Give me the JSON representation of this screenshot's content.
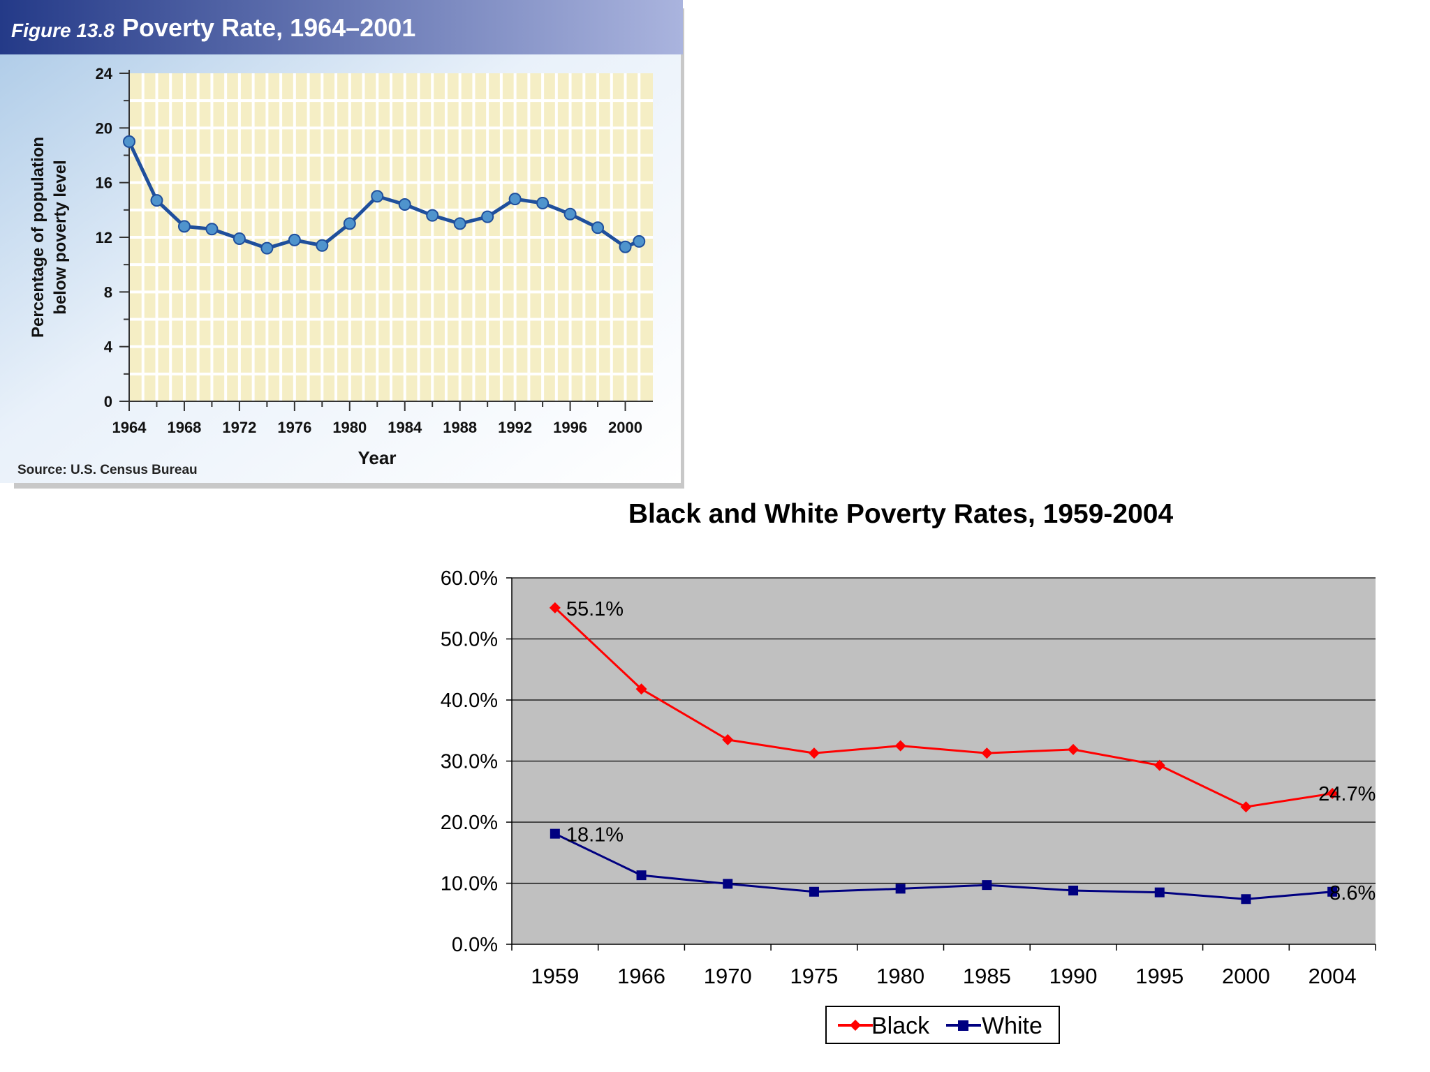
{
  "chart_data": [
    {
      "type": "line",
      "figure_label": "Figure 13.8",
      "title": "Poverty Rate, 1964–2001",
      "xlabel": "Year",
      "ylabel_line1": "Percentage of population",
      "ylabel_line2": "below poverty level",
      "source": "Source: U.S. Census Bureau",
      "ylim": [
        0,
        24
      ],
      "xlim": [
        1964,
        2002
      ],
      "yticks": [
        "0",
        "4",
        "8",
        "12",
        "16",
        "20",
        "24"
      ],
      "xticks": [
        "1964",
        "1968",
        "1972",
        "1976",
        "1980",
        "1984",
        "1988",
        "1992",
        "1996",
        "2000"
      ],
      "grid": true,
      "series": [
        {
          "name": "Poverty rate",
          "x": [
            1964,
            1966,
            1968,
            1970,
            1972,
            1974,
            1976,
            1978,
            1980,
            1982,
            1984,
            1986,
            1988,
            1990,
            1992,
            1994,
            1996,
            1998,
            2000,
            2001
          ],
          "values": [
            19.0,
            14.7,
            12.8,
            12.6,
            11.9,
            11.2,
            11.8,
            11.4,
            13.0,
            15.0,
            14.4,
            13.6,
            13.0,
            13.5,
            14.8,
            14.5,
            13.7,
            12.7,
            11.3,
            11.7
          ]
        }
      ],
      "colors": {
        "line": "#1f4f9c",
        "marker": "#4f94cd",
        "plot_bg": "#f5eec5",
        "grid": "#ffffff",
        "header_start": "#243a88",
        "header_end": "#aab4de"
      }
    },
    {
      "type": "line",
      "title": "Black and White Poverty Rates, 1959-2004",
      "categories": [
        "1959",
        "1966",
        "1970",
        "1975",
        "1980",
        "1985",
        "1990",
        "1995",
        "2000",
        "2004"
      ],
      "yticks": [
        "0.0%",
        "10.0%",
        "20.0%",
        "30.0%",
        "40.0%",
        "50.0%",
        "60.0%"
      ],
      "ylim": [
        0,
        60
      ],
      "grid": true,
      "legend_position": "bottom",
      "series": [
        {
          "name": "Black",
          "values": [
            55.1,
            41.8,
            33.5,
            31.3,
            32.5,
            31.3,
            31.9,
            29.3,
            22.5,
            24.7
          ],
          "labels": {
            "first": "55.1%",
            "last": "24.7%"
          },
          "color": "#ff0000",
          "marker": "diamond"
        },
        {
          "name": "White",
          "values": [
            18.1,
            11.3,
            9.9,
            8.6,
            9.1,
            9.7,
            8.8,
            8.5,
            7.4,
            8.6
          ],
          "labels": {
            "first": "18.1%",
            "last": "8.6%"
          },
          "color": "#000080",
          "marker": "square"
        }
      ],
      "colors": {
        "plot_bg": "#c0c0c0",
        "grid": "#000000"
      }
    }
  ]
}
